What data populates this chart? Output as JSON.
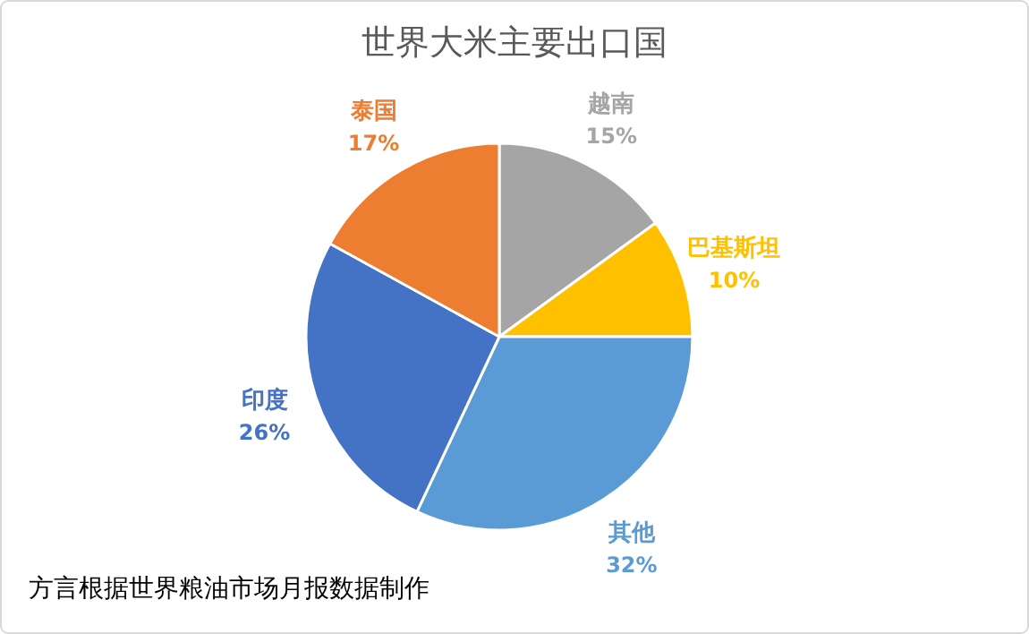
{
  "chart_data": {
    "type": "pie",
    "title": "世界大米主要出口国",
    "categories": [
      "越南",
      "巴基斯坦",
      "其他",
      "印度",
      "泰国"
    ],
    "values": [
      15,
      10,
      32,
      26,
      17
    ],
    "colors": [
      "#a5a5a5",
      "#ffc000",
      "#5b9bd5",
      "#4472c4",
      "#ed7d31"
    ],
    "value_labels": [
      "15%",
      "10%",
      "32%",
      "26%",
      "17%"
    ],
    "annotations": [
      "方言根据世界粮油市场月报数据制作"
    ]
  }
}
